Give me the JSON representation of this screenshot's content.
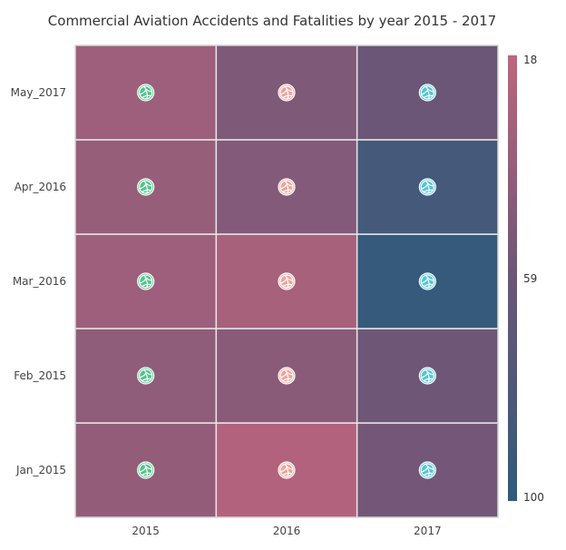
{
  "chart_data": {
    "type": "heatmap",
    "title": "Commercial Aviation Accidents and Fatalities by year 2015 - 2017",
    "x_categories": [
      "2015",
      "2016",
      "2017"
    ],
    "y_categories": [
      "Jan_2015",
      "Feb_2015",
      "Mar_2016",
      "Apr_2016",
      "May_2017"
    ],
    "values": [
      [
        40,
        25,
        55
      ],
      [
        42,
        45,
        58
      ],
      [
        35,
        30,
        95
      ],
      [
        38,
        48,
        85
      ],
      [
        35,
        50,
        60
      ]
    ],
    "value_range": [
      18,
      100
    ],
    "legend": {
      "position": "right",
      "labels": [
        "18",
        "59",
        "100"
      ],
      "colors": [
        "#c0657d",
        "#6c5677",
        "#2f5b7c"
      ]
    },
    "marker": {
      "icon": "volleyball-icon",
      "colors_by_column": [
        "#4ec58a",
        "#f0a39a",
        "#4fc6da"
      ]
    },
    "grid_line_color": "#e6e6e6"
  }
}
